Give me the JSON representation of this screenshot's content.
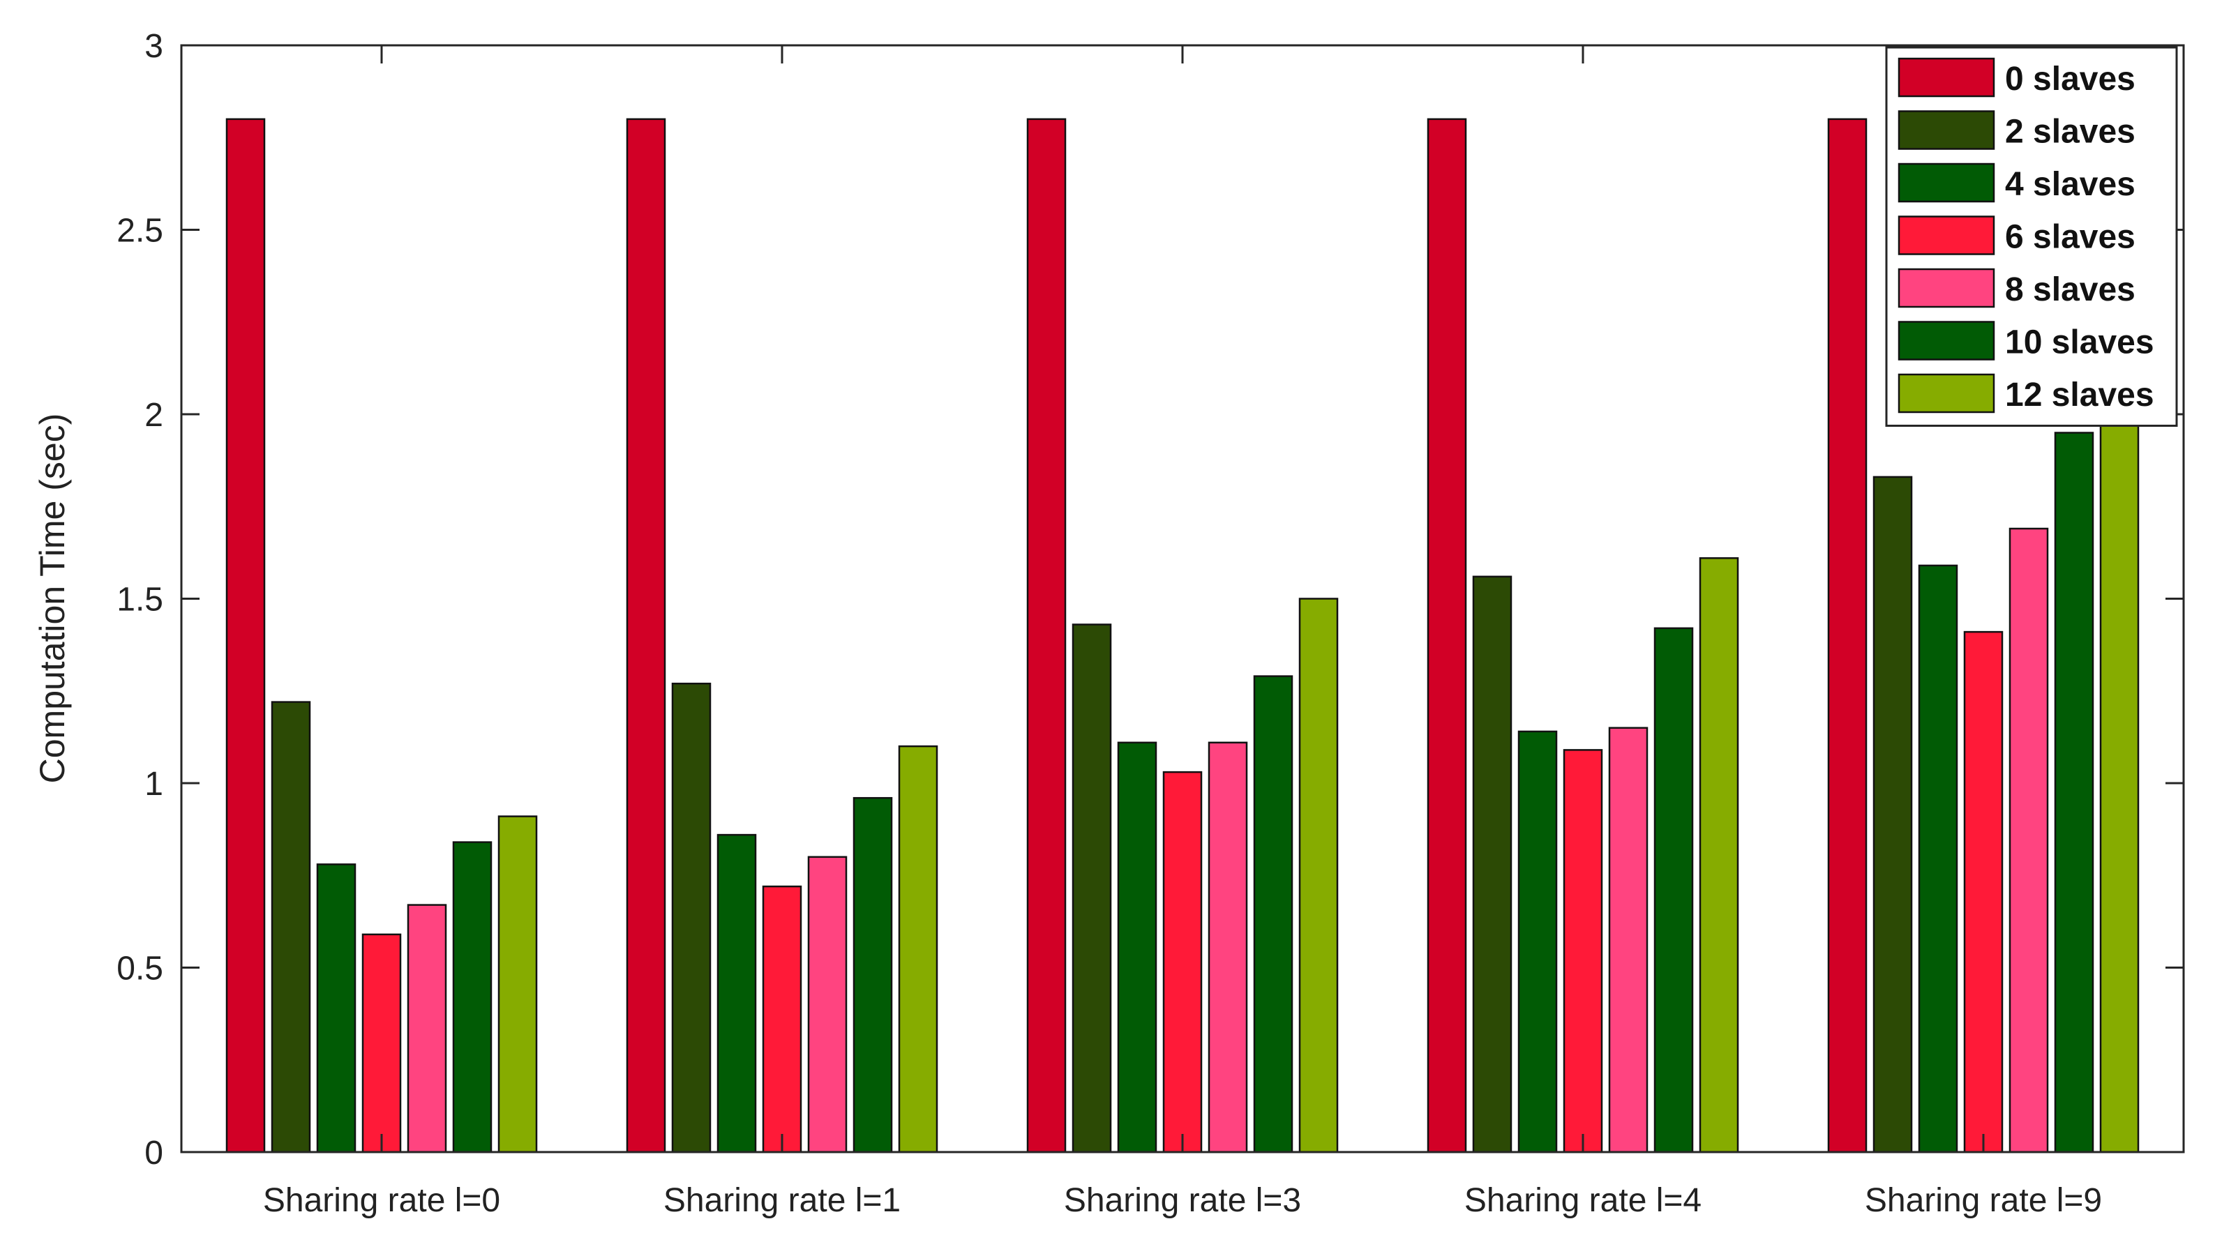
{
  "chart_data": {
    "type": "bar",
    "title": "",
    "xlabel": "",
    "ylabel": "Computation Time (sec)",
    "ylim": [
      0,
      3
    ],
    "yticks": [
      0,
      0.5,
      1,
      1.5,
      2,
      2.5,
      3
    ],
    "ytick_labels": [
      "0",
      "0.5",
      "1",
      "1.5",
      "2",
      "2.5",
      "3"
    ],
    "grid": false,
    "legend_position": "top-right",
    "categories": [
      "Sharing rate l=0",
      "Sharing rate l=1",
      "Sharing rate l=3",
      "Sharing rate l=4",
      "Sharing rate l=9"
    ],
    "series": [
      {
        "name": "0 slaves",
        "color": "#d20026",
        "values": [
          2.8,
          2.8,
          2.8,
          2.8,
          2.8
        ]
      },
      {
        "name": "2 slaves",
        "color": "#2c4a05",
        "values": [
          1.22,
          1.27,
          1.43,
          1.56,
          1.83
        ]
      },
      {
        "name": "4 slaves",
        "color": "#015b05",
        "values": [
          0.78,
          0.86,
          1.11,
          1.14,
          1.59
        ]
      },
      {
        "name": "6 slaves",
        "color": "#ff1a38",
        "values": [
          0.59,
          0.72,
          1.03,
          1.09,
          1.41
        ]
      },
      {
        "name": "8 slaves",
        "color": "#ff4480",
        "values": [
          0.67,
          0.8,
          1.11,
          1.15,
          1.69
        ]
      },
      {
        "name": "10 slaves",
        "color": "#015b05",
        "values": [
          0.84,
          0.96,
          1.29,
          1.42,
          1.95
        ]
      },
      {
        "name": "12 slaves",
        "color": "#86ac00",
        "values": [
          0.91,
          1.1,
          1.5,
          1.61,
          2.04
        ]
      }
    ]
  }
}
